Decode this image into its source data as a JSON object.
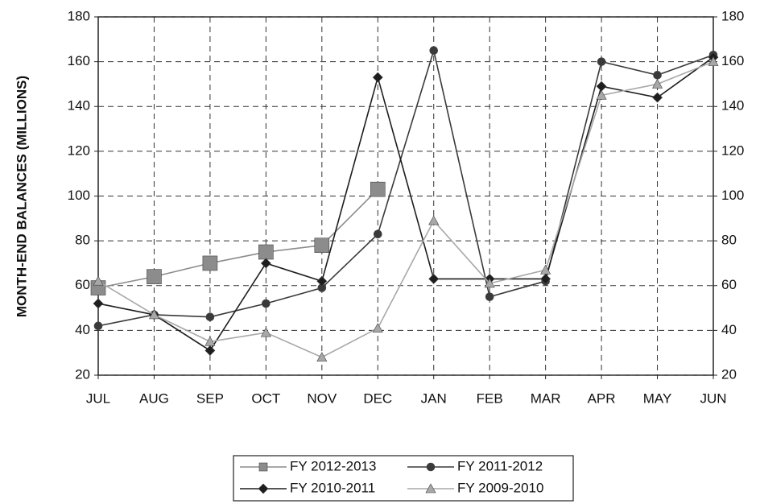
{
  "chart_data": {
    "type": "line",
    "y_label": "MONTH-END BALANCES (MILLIONS)",
    "categories": [
      "JUL",
      "AUG",
      "SEP",
      "OCT",
      "NOV",
      "DEC",
      "JAN",
      "FEB",
      "MAR",
      "APR",
      "MAY",
      "JUN"
    ],
    "series": [
      {
        "name": "FY 2012-2013",
        "color": "#8c8c8c",
        "marker": "square",
        "values": [
          59,
          64,
          70,
          75,
          78,
          103,
          null,
          null,
          null,
          null,
          null,
          null
        ]
      },
      {
        "name": "FY 2011-2012",
        "color": "#3a3a3a",
        "marker": "circle",
        "values": [
          42,
          47,
          46,
          52,
          59,
          83,
          165,
          55,
          62,
          160,
          154,
          163
        ]
      },
      {
        "name": "FY 2010-2011",
        "color": "#1e1e1e",
        "marker": "diamond",
        "values": [
          52,
          47,
          31,
          70,
          62,
          153,
          63,
          63,
          63,
          149,
          144,
          162
        ]
      },
      {
        "name": "FY 2009-2010",
        "color": "#a8a8a8",
        "marker": "triangle",
        "values": [
          62,
          47,
          35,
          39,
          28,
          41,
          89,
          61,
          67,
          145,
          150,
          160
        ]
      }
    ],
    "ylim": [
      20,
      180
    ],
    "yticks": [
      20,
      40,
      60,
      80,
      100,
      120,
      140,
      160,
      180
    ],
    "y2lim": [
      20,
      180
    ],
    "y2ticks": [
      20,
      40,
      60,
      80,
      100,
      120,
      140,
      160,
      180
    ],
    "grid": true,
    "legend": "bottom"
  }
}
